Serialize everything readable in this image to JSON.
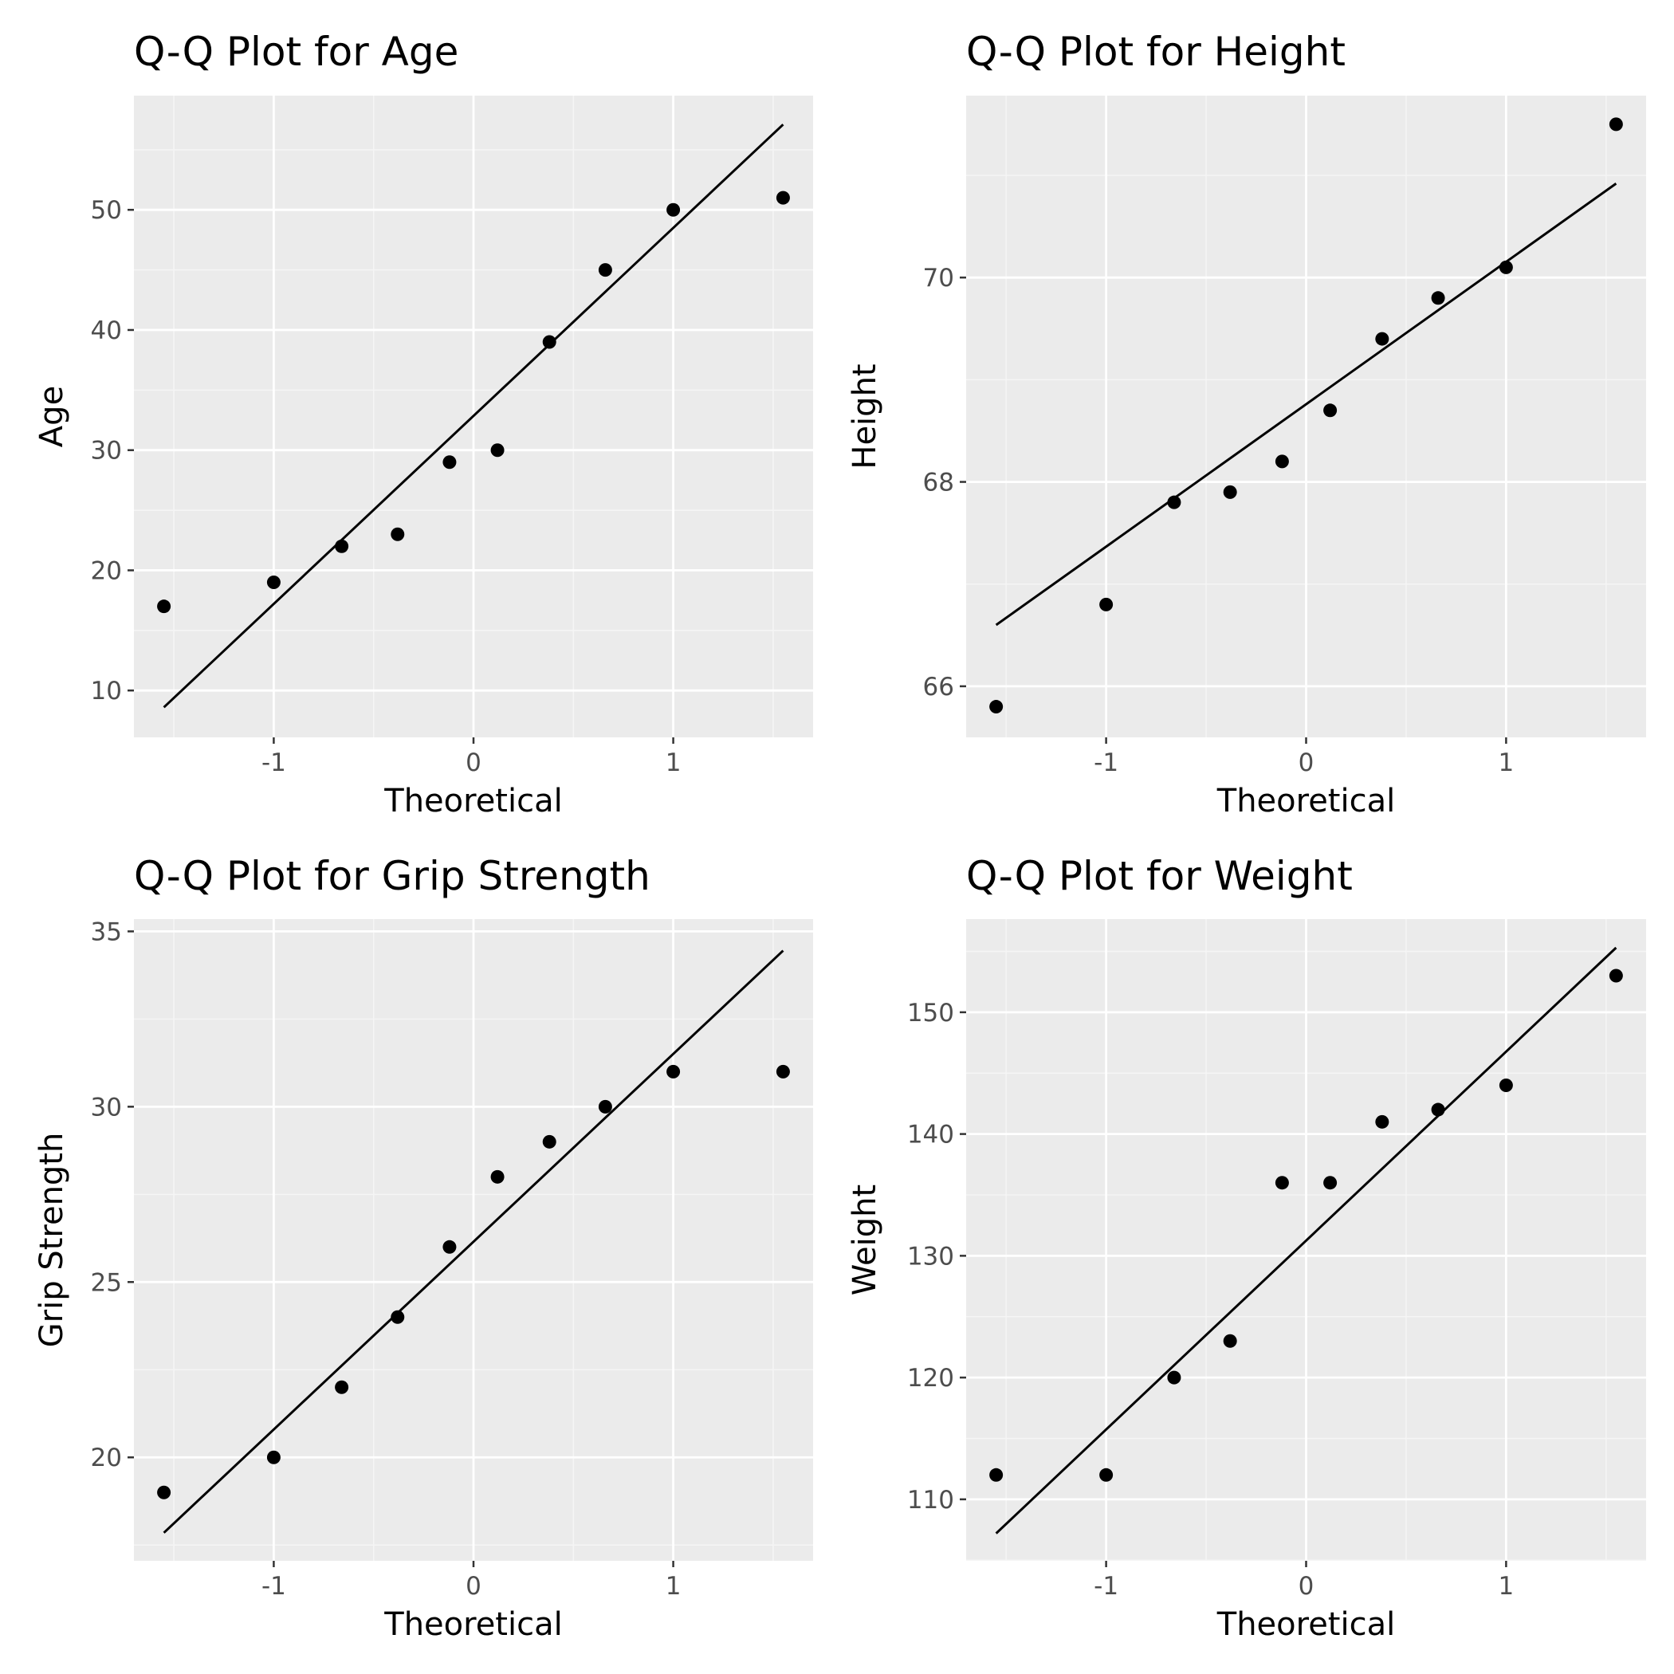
{
  "chart_data": [
    {
      "type": "scatter",
      "title": "Q-Q Plot for Age",
      "xlabel": "Theoretical",
      "ylabel": "Age",
      "xlim": [
        -1.7,
        1.7
      ],
      "ylim": [
        6.1,
        59.5
      ],
      "xticks": [
        -1,
        0,
        1
      ],
      "xtick_labels": [
        "-1",
        "0",
        "1"
      ],
      "yticks": [
        10,
        20,
        30,
        40,
        50
      ],
      "ytick_labels": [
        "10",
        "20",
        "30",
        "40",
        "50"
      ],
      "grid": true,
      "x": [
        -1.55,
        -1.0,
        -0.66,
        -0.38,
        -0.12,
        0.12,
        0.38,
        0.66,
        1.0,
        1.55
      ],
      "y": [
        17,
        19,
        22,
        23,
        29,
        30,
        39,
        45,
        50,
        51
      ],
      "line": {
        "x": [
          -1.55,
          1.55
        ],
        "y": [
          8.6,
          57.1
        ]
      }
    },
    {
      "type": "scatter",
      "title": "Q-Q Plot for Height",
      "xlabel": "Theoretical",
      "ylabel": "Height",
      "xlim": [
        -1.7,
        1.7
      ],
      "ylim": [
        65.5,
        71.78
      ],
      "xticks": [
        -1,
        0,
        1
      ],
      "xtick_labels": [
        "-1",
        "0",
        "1"
      ],
      "yticks": [
        66,
        68,
        70
      ],
      "ytick_labels": [
        "66",
        "68",
        "70"
      ],
      "grid": true,
      "x": [
        -1.55,
        -1.0,
        -0.66,
        -0.38,
        -0.12,
        0.12,
        0.38,
        0.66,
        1.0,
        1.55
      ],
      "y": [
        65.8,
        66.8,
        67.8,
        67.9,
        68.2,
        68.7,
        69.4,
        69.8,
        70.1,
        71.5
      ],
      "line": {
        "x": [
          -1.55,
          1.55
        ],
        "y": [
          66.6,
          70.92
        ]
      }
    },
    {
      "type": "scatter",
      "title": "Q-Q Plot for Grip Strength",
      "xlabel": "Theoretical",
      "ylabel": "Grip Strength",
      "xlim": [
        -1.7,
        1.7
      ],
      "ylim": [
        17.05,
        35.35
      ],
      "xticks": [
        -1,
        0,
        1
      ],
      "xtick_labels": [
        "-1",
        "0",
        "1"
      ],
      "yticks": [
        20,
        25,
        30,
        35
      ],
      "ytick_labels": [
        "20",
        "25",
        "30",
        "35"
      ],
      "grid": true,
      "x": [
        -1.55,
        -1.0,
        -0.66,
        -0.38,
        -0.12,
        0.12,
        0.38,
        0.66,
        1.0,
        1.55
      ],
      "y": [
        19,
        20,
        22,
        24,
        26,
        28,
        29,
        30,
        31,
        31
      ],
      "line": {
        "x": [
          -1.55,
          1.55
        ],
        "y": [
          17.85,
          34.45
        ]
      }
    },
    {
      "type": "scatter",
      "title": "Q-Q Plot for Weight",
      "xlabel": "Theoretical",
      "ylabel": "Weight",
      "xlim": [
        -1.7,
        1.7
      ],
      "ylim": [
        104.95,
        157.65
      ],
      "xticks": [
        -1,
        0,
        1
      ],
      "xtick_labels": [
        "-1",
        "0",
        "1"
      ],
      "yticks": [
        110,
        120,
        130,
        140,
        150
      ],
      "ytick_labels": [
        "110",
        "120",
        "130",
        "140",
        "150"
      ],
      "grid": true,
      "x": [
        -1.55,
        -1.0,
        -0.66,
        -0.38,
        -0.12,
        0.12,
        0.38,
        0.66,
        1.0,
        1.55
      ],
      "y": [
        112,
        112,
        120,
        123,
        136,
        136,
        141,
        142,
        144,
        153
      ],
      "line": {
        "x": [
          -1.55,
          1.55
        ],
        "y": [
          107.2,
          155.3
        ]
      }
    }
  ],
  "colors": {
    "panel_background": "#ebebeb",
    "grid_major": "#ffffff",
    "grid_minor": "#f5f5f5",
    "points": "#000000",
    "line": "#000000",
    "tick_text": "#4d4d4d",
    "tick_mark": "#333333"
  }
}
